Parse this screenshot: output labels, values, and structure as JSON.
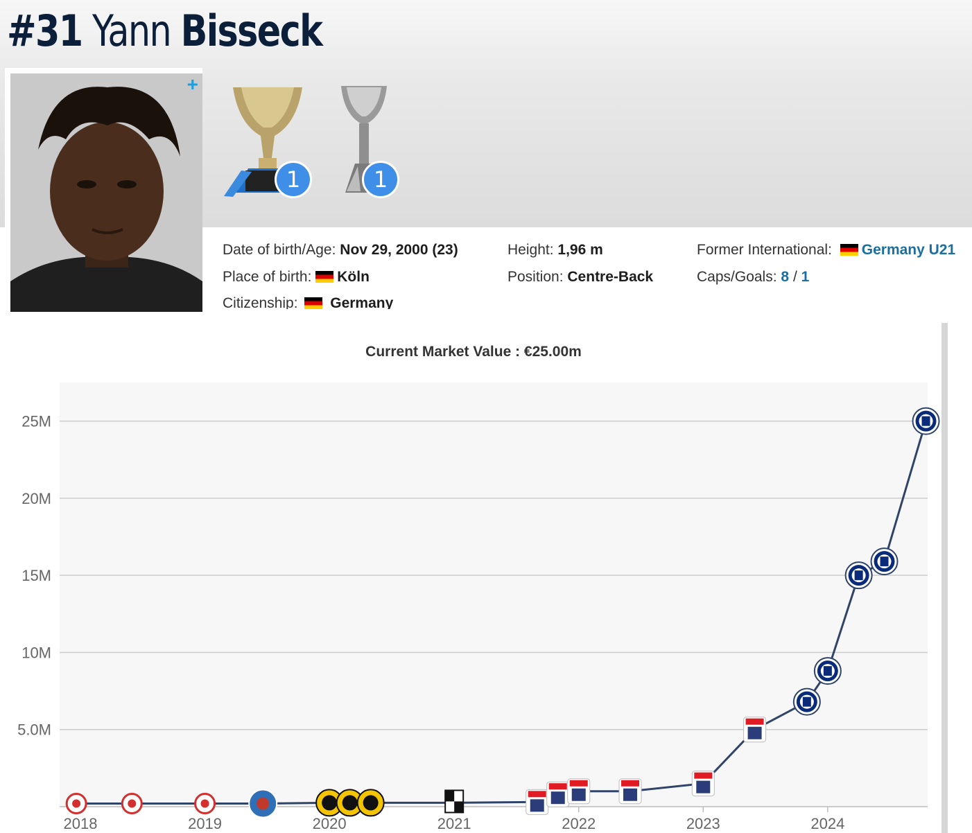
{
  "player": {
    "number": "#31",
    "first_name": "Yann",
    "last_name": "Bisseck"
  },
  "trophies": [
    {
      "name": "italian-league-trophy",
      "count": "1"
    },
    {
      "name": "italian-supercup-trophy",
      "count": "1"
    }
  ],
  "details": {
    "dob_label": "Date of birth/Age:",
    "dob_value": "Nov 29, 2000 (23)",
    "pob_label": "Place of birth:",
    "pob_value": "Köln",
    "citizenship_label": "Citizenship:",
    "citizenship_value": "Germany",
    "height_label": "Height:",
    "height_value": "1,96 m",
    "position_label": "Position:",
    "position_value": "Centre-Back",
    "intl_label": "Former International:",
    "intl_value": "Germany U21",
    "caps_label": "Caps/Goals:",
    "caps_value": "8",
    "caps_sep": "/",
    "goals_value": "1"
  },
  "colors": {
    "line": "#2f4468",
    "grid": "#cccccc",
    "plot_bg": "#f7f7f7",
    "link": "#1a6fa0",
    "badge": "#3f8fe8",
    "title": "#0b1f3a"
  },
  "chart_data": {
    "type": "line",
    "title": "Current Market Value : €25.00m",
    "xlabel": "",
    "ylabel": "",
    "y_ticks": [
      "5.0M",
      "10M",
      "15M",
      "20M",
      "25M"
    ],
    "x_ticks": [
      "2018",
      "2019",
      "2020",
      "2021",
      "2022",
      "2023",
      "2024"
    ],
    "ylim": [
      0,
      27500000
    ],
    "xlim": [
      "2017-11-01",
      "2024-10-20"
    ],
    "grid": true,
    "points": [
      {
        "date": "2017-12-20",
        "value": 200000,
        "club": "fc-koln-logo"
      },
      {
        "date": "2018-06-01",
        "value": 200000,
        "club": "fc-koln-logo"
      },
      {
        "date": "2019-01-01",
        "value": 200000,
        "club": "fc-koln-logo"
      },
      {
        "date": "2019-06-20",
        "value": 200000,
        "club": "holstein-kiel-logo"
      },
      {
        "date": "2020-01-01",
        "value": 250000,
        "club": "roda-jc-logo"
      },
      {
        "date": "2020-03-01",
        "value": 250000,
        "club": "roda-jc-logo"
      },
      {
        "date": "2020-05-01",
        "value": 250000,
        "club": "roda-jc-logo"
      },
      {
        "date": "2021-01-01",
        "value": 250000,
        "club": "vitoria-guimaraes-logo"
      },
      {
        "date": "2021-09-01",
        "value": 300000,
        "club": "agf-aarhus-logo"
      },
      {
        "date": "2021-11-01",
        "value": 800000,
        "club": "agf-aarhus-logo"
      },
      {
        "date": "2022-01-01",
        "value": 1000000,
        "club": "agf-aarhus-logo"
      },
      {
        "date": "2022-06-01",
        "value": 1000000,
        "club": "agf-aarhus-logo"
      },
      {
        "date": "2023-01-01",
        "value": 1500000,
        "club": "agf-aarhus-logo"
      },
      {
        "date": "2023-06-01",
        "value": 5000000,
        "club": "agf-aarhus-logo"
      },
      {
        "date": "2023-11-01",
        "value": 6800000,
        "club": "inter-milan-logo"
      },
      {
        "date": "2024-01-01",
        "value": 8800000,
        "club": "inter-milan-logo"
      },
      {
        "date": "2024-04-01",
        "value": 15000000,
        "club": "inter-milan-logo"
      },
      {
        "date": "2024-06-15",
        "value": 15900000,
        "club": "inter-milan-logo"
      },
      {
        "date": "2024-10-15",
        "value": 25000000,
        "club": "inter-milan-logo"
      }
    ]
  }
}
